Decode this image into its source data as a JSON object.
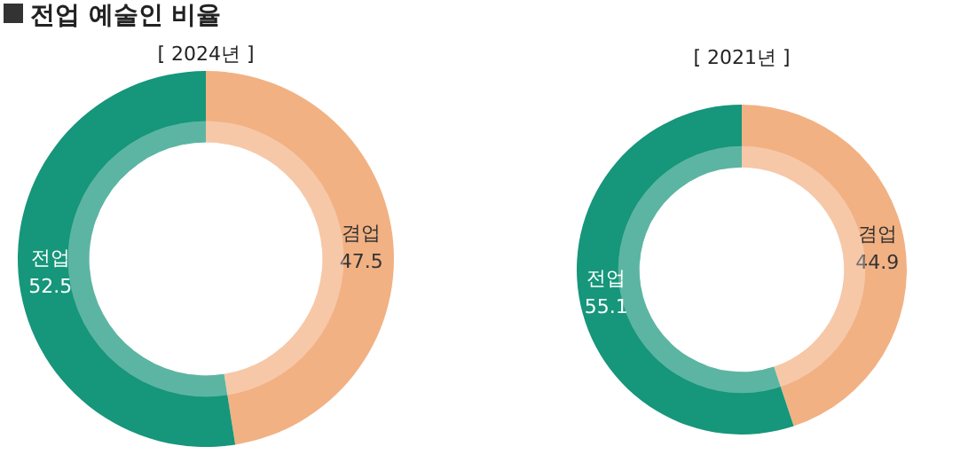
{
  "chart_data": [
    {
      "type": "donut",
      "title": "전업 예술인 비율",
      "subtitle": "[ 2024년 ]",
      "categories": [
        "겸업",
        "전업"
      ],
      "values": [
        47.5,
        52.5
      ],
      "colors": [
        "#f2b183",
        "#16967a"
      ],
      "data_labels": true
    },
    {
      "type": "donut",
      "subtitle": "[ 2021년 ]",
      "categories": [
        "겸업",
        "전업"
      ],
      "values": [
        44.9,
        55.1
      ],
      "colors": [
        "#f2b183",
        "#16967a"
      ],
      "data_labels": true
    }
  ]
}
